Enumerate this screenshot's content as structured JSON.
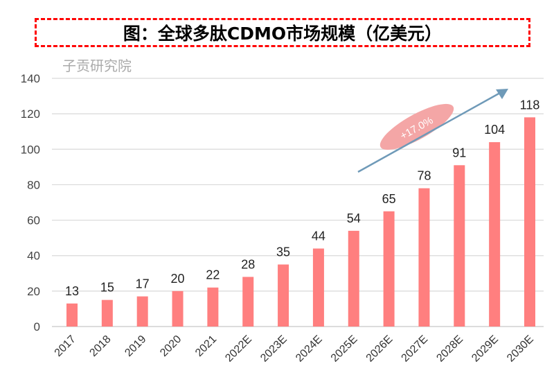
{
  "chart_data": {
    "type": "bar",
    "title": "图：全球多肽CDMO市场规模（亿美元）",
    "categories": [
      "2017",
      "2018",
      "2019",
      "2020",
      "2021",
      "2022E",
      "2023E",
      "2024E",
      "2025E",
      "2026E",
      "2027E",
      "2028E",
      "2029E",
      "2030E"
    ],
    "values": [
      13,
      15,
      17,
      20,
      22,
      28,
      35,
      44,
      54,
      65,
      78,
      91,
      104,
      118
    ],
    "ylim": [
      0,
      140
    ],
    "yticks": [
      0,
      20,
      40,
      60,
      80,
      100,
      120,
      140
    ],
    "grid": true,
    "bar_color": "#ff7f7f",
    "annotation": {
      "text": "+17.0%",
      "ellipse_color": "#f4a6a6",
      "arrow_color": "#6f9ab8"
    },
    "watermark": "子贡研究院"
  }
}
